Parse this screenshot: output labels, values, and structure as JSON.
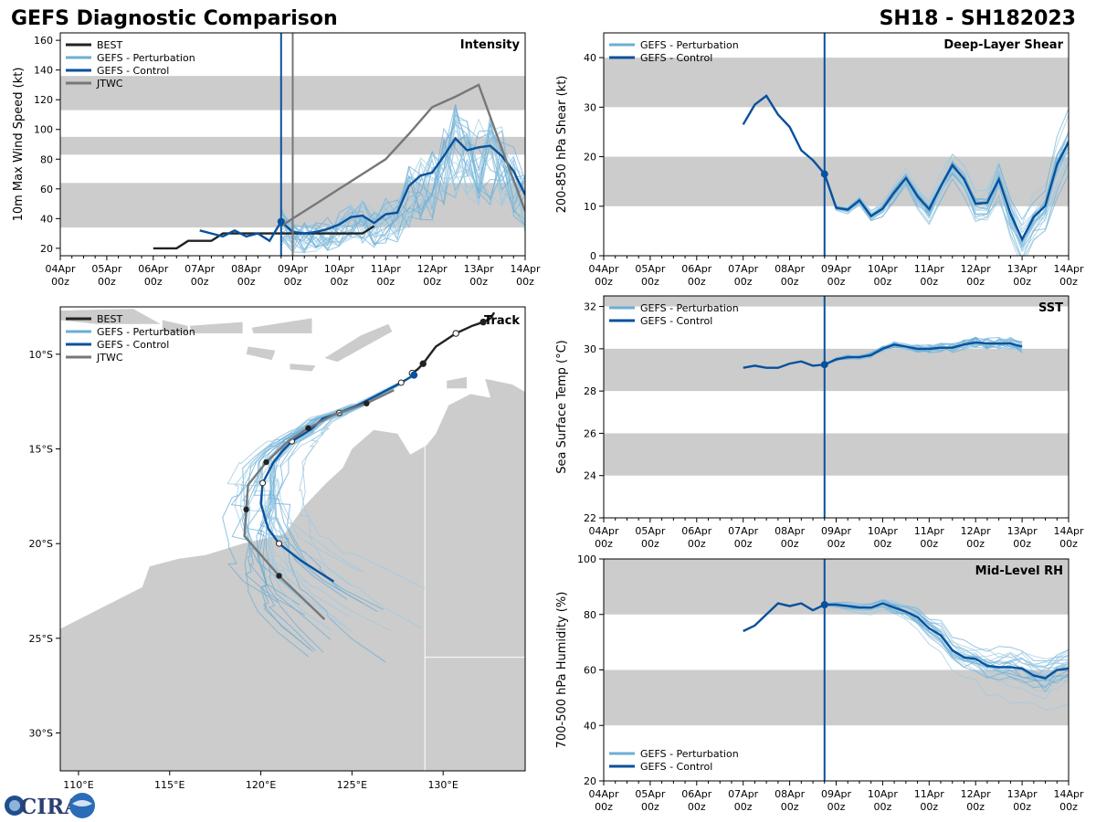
{
  "figure": {
    "title_left": "GEFS Diagnostic Comparison",
    "title_right": "SH18 - SH182023",
    "logo_text": "CIRA",
    "colors": {
      "best": "#222222",
      "perturbation": "#6baed6",
      "perturbation_light": "#9ecae1",
      "control": "#08519c",
      "jtwc": "#777777",
      "band": "#cccccc",
      "land": "#cccccc"
    }
  },
  "chart_data": [
    {
      "id": "intensity",
      "type": "line",
      "title": "Intensity",
      "ylabel": "10m Max Wind Speed (kt)",
      "xlim": [
        0,
        240
      ],
      "ylim": [
        15,
        165
      ],
      "yticks": [
        20,
        40,
        60,
        80,
        100,
        120,
        140,
        160
      ],
      "xticks": [
        {
          "h": 0,
          "day": "04Apr",
          "hr": "00z"
        },
        {
          "h": 24,
          "day": "05Apr",
          "hr": "00z"
        },
        {
          "h": 48,
          "day": "06Apr",
          "hr": "00z"
        },
        {
          "h": 72,
          "day": "07Apr",
          "hr": "00z"
        },
        {
          "h": 96,
          "day": "08Apr",
          "hr": "00z"
        },
        {
          "h": 120,
          "day": "09Apr",
          "hr": "00z"
        },
        {
          "h": 144,
          "day": "10Apr",
          "hr": "00z"
        },
        {
          "h": 168,
          "day": "11Apr",
          "hr": "00z"
        },
        {
          "h": 192,
          "day": "12Apr",
          "hr": "00z"
        },
        {
          "h": 216,
          "day": "13Apr",
          "hr": "00z"
        },
        {
          "h": 240,
          "day": "14Apr",
          "hr": "00z"
        }
      ],
      "bands": [
        [
          34,
          64
        ],
        [
          83,
          95
        ],
        [
          113,
          136
        ]
      ],
      "init_lines": [
        {
          "h": 114,
          "color": "#08519c"
        },
        {
          "h": 120,
          "color": "#777777"
        }
      ],
      "legend": [
        "BEST",
        "GEFS - Perturbation",
        "GEFS - Control",
        "JTWC"
      ],
      "legend_pos": "upper-left",
      "series": [
        {
          "name": "BEST",
          "x": [
            0,
            6,
            12,
            18,
            24,
            30,
            36,
            42,
            48,
            54,
            60,
            66,
            72,
            78,
            84,
            90,
            96,
            102,
            108,
            114
          ],
          "y": [
            20,
            20,
            20,
            25,
            25,
            25,
            30,
            30,
            30,
            30,
            30,
            30,
            30,
            30,
            30,
            30,
            30,
            30,
            30,
            35
          ],
          "offset": 48
        },
        {
          "name": "GEFS - Control",
          "x": [
            72,
            78,
            84,
            90,
            96,
            102,
            108,
            114,
            120,
            126,
            132,
            138,
            144,
            150,
            156,
            162,
            168,
            174,
            180,
            186,
            192,
            198,
            204,
            210,
            216,
            222,
            228,
            234,
            240
          ],
          "y": [
            32,
            30,
            28,
            32,
            28,
            30,
            25,
            38,
            31,
            30,
            31,
            33,
            36,
            41,
            42,
            37,
            43,
            44,
            62,
            69,
            71,
            82,
            94,
            86,
            88,
            89,
            82,
            72,
            56
          ]
        },
        {
          "name": "JTWC",
          "x": [
            114,
            120,
            132,
            144,
            156,
            168,
            180,
            192,
            204,
            216,
            228,
            240
          ],
          "y": [
            35,
            40,
            50,
            60,
            70,
            80,
            97,
            115,
            122,
            130,
            87,
            45
          ]
        }
      ],
      "perturbation_end_range": [
        30,
        110
      ]
    },
    {
      "id": "shear",
      "type": "line",
      "title": "Deep-Layer Shear",
      "ylabel": "200-850 hPa Shear (kt)",
      "xlim": [
        0,
        240
      ],
      "ylim": [
        0,
        45
      ],
      "yticks": [
        0,
        10,
        20,
        30,
        40
      ],
      "bands": [
        [
          10,
          20
        ],
        [
          30,
          40
        ]
      ],
      "legend": [
        "GEFS - Perturbation",
        "GEFS - Control"
      ],
      "legend_pos": "upper-left",
      "series": [
        {
          "name": "GEFS - Control",
          "x": [
            72,
            78,
            84,
            90,
            96,
            102,
            108,
            114,
            120,
            126,
            132,
            138,
            144,
            150,
            156,
            162,
            168,
            174,
            180,
            186,
            192,
            198,
            204,
            210,
            216,
            222,
            228,
            234,
            240
          ],
          "y": [
            26.5,
            30.5,
            32.3,
            28.5,
            26,
            21.3,
            19.3,
            16.5,
            9.7,
            9.3,
            11.2,
            8,
            9.5,
            12.8,
            15.7,
            12,
            9.4,
            14,
            18.3,
            15.5,
            10.5,
            10.7,
            15.4,
            8.5,
            3.3,
            7.8,
            10.1,
            18.4,
            23
          ]
        }
      ]
    },
    {
      "id": "track",
      "type": "line",
      "title": "Track",
      "xlim": [
        109,
        134.5
      ],
      "ylim": [
        -32,
        -7.5
      ],
      "xticks": [
        "110°E",
        "115°E",
        "120°E",
        "125°E",
        "130°E"
      ],
      "yticks": [
        "10°S",
        "15°S",
        "20°S",
        "25°S",
        "30°S"
      ],
      "legend": [
        "BEST",
        "GEFS - Perturbation",
        "GEFS - Control",
        "JTWC"
      ],
      "legend_pos": "upper-left",
      "series": [
        {
          "name": "BEST",
          "lon": [
            132.8,
            132.6,
            132.2,
            131.6,
            130.7,
            129.6,
            128.9,
            128.6,
            128.3
          ],
          "lat": [
            -7.8,
            -8.1,
            -8.3,
            -8.5,
            -8.9,
            -9.6,
            -10.5,
            -10.8,
            -11.0
          ]
        },
        {
          "name": "GEFS - Control",
          "lon": [
            128.4,
            127.7,
            126.5,
            125.3,
            124.3,
            123.4,
            122.7,
            121.7,
            121.2,
            120.7,
            120.1,
            120.0,
            120.4,
            121.0,
            122.2,
            124.0
          ],
          "lat": [
            -11.1,
            -11.5,
            -12.1,
            -12.7,
            -13.1,
            -13.4,
            -14.0,
            -14.6,
            -15.1,
            -15.7,
            -16.8,
            -17.9,
            -19.2,
            -20.0,
            -20.9,
            -22.0
          ]
        },
        {
          "name": "JTWC",
          "lon": [
            127.3,
            125.8,
            124.0,
            122.6,
            121.5,
            120.3,
            119.3,
            119.2,
            119.1,
            121.0,
            123.5
          ],
          "lat": [
            -11.9,
            -12.6,
            -13.2,
            -13.9,
            -14.6,
            -15.7,
            -16.9,
            -18.2,
            -19.6,
            -21.7,
            -24.0
          ]
        }
      ]
    },
    {
      "id": "sst",
      "type": "line",
      "title": "SST",
      "ylabel": "Sea Surface Temp (°C)",
      "xlim": [
        0,
        240
      ],
      "ylim": [
        22,
        32.5
      ],
      "yticks": [
        22,
        24,
        26,
        28,
        30,
        32
      ],
      "bands": [
        [
          24,
          26
        ],
        [
          28,
          30
        ],
        [
          32,
          32.5
        ]
      ],
      "legend": [
        "GEFS - Perturbation",
        "GEFS - Control"
      ],
      "legend_pos": "upper-left",
      "series": [
        {
          "name": "GEFS - Control",
          "x": [
            72,
            78,
            84,
            90,
            96,
            102,
            108,
            114,
            120,
            126,
            132,
            138,
            144,
            150,
            156,
            162,
            168,
            174,
            180,
            186,
            192,
            198,
            204,
            210,
            216
          ],
          "y": [
            29.1,
            29.2,
            29.1,
            29.1,
            29.3,
            29.4,
            29.2,
            29.25,
            29.5,
            29.6,
            29.6,
            29.7,
            30.0,
            30.2,
            30.1,
            30.0,
            30.0,
            30.05,
            30.05,
            30.2,
            30.3,
            30.25,
            30.25,
            30.25,
            30.1
          ]
        }
      ]
    },
    {
      "id": "rh",
      "type": "line",
      "title": "Mid-Level RH",
      "ylabel": "700-500 hPa Humidity (%)",
      "xlim": [
        0,
        240
      ],
      "ylim": [
        20,
        100
      ],
      "yticks": [
        20,
        40,
        60,
        80,
        100
      ],
      "bands": [
        [
          40,
          60
        ],
        [
          80,
          100
        ]
      ],
      "legend": [
        "GEFS - Perturbation",
        "GEFS - Control"
      ],
      "legend_pos": "lower-left",
      "series": [
        {
          "name": "GEFS - Control",
          "x": [
            72,
            78,
            84,
            90,
            96,
            102,
            108,
            114,
            120,
            126,
            132,
            138,
            144,
            150,
            156,
            162,
            168,
            174,
            180,
            186,
            192,
            198,
            204,
            210,
            216,
            222,
            228,
            234,
            240
          ],
          "y": [
            74,
            76,
            80,
            84,
            83,
            84,
            81.5,
            83.5,
            83.5,
            83,
            82.5,
            82.5,
            84,
            82.5,
            81,
            79,
            75,
            72.5,
            67,
            64.5,
            64,
            61.5,
            61,
            61,
            60.5,
            58,
            57,
            60,
            60.5
          ]
        }
      ]
    }
  ]
}
